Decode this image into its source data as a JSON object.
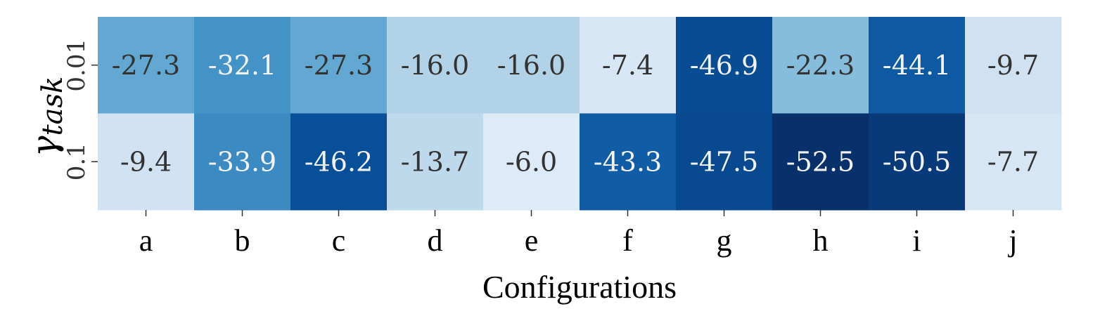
{
  "chart_data": {
    "type": "heatmap",
    "title": "",
    "xlabel": "Configurations",
    "ylabel_symbol": "γ",
    "ylabel_subscript": "task",
    "x_categories": [
      "a",
      "b",
      "c",
      "d",
      "e",
      "f",
      "g",
      "h",
      "i",
      "j"
    ],
    "y_categories": [
      "0.01",
      "0.1"
    ],
    "values": [
      [
        -27.3,
        -32.1,
        -27.3,
        -16.0,
        -16.0,
        -7.4,
        -46.9,
        -22.3,
        -44.1,
        -9.7
      ],
      [
        -9.4,
        -33.9,
        -46.2,
        -13.7,
        -6.0,
        -43.3,
        -47.5,
        -52.5,
        -50.5,
        -7.7
      ]
    ],
    "value_range": [
      -52.5,
      -6.0
    ],
    "colormap": "Blues_r",
    "colorbar": false,
    "colors": {
      "lightest": "#deebf7",
      "darkest": "#08306b",
      "light_text": "#f2f2f2",
      "dark_text": "#333333"
    }
  }
}
